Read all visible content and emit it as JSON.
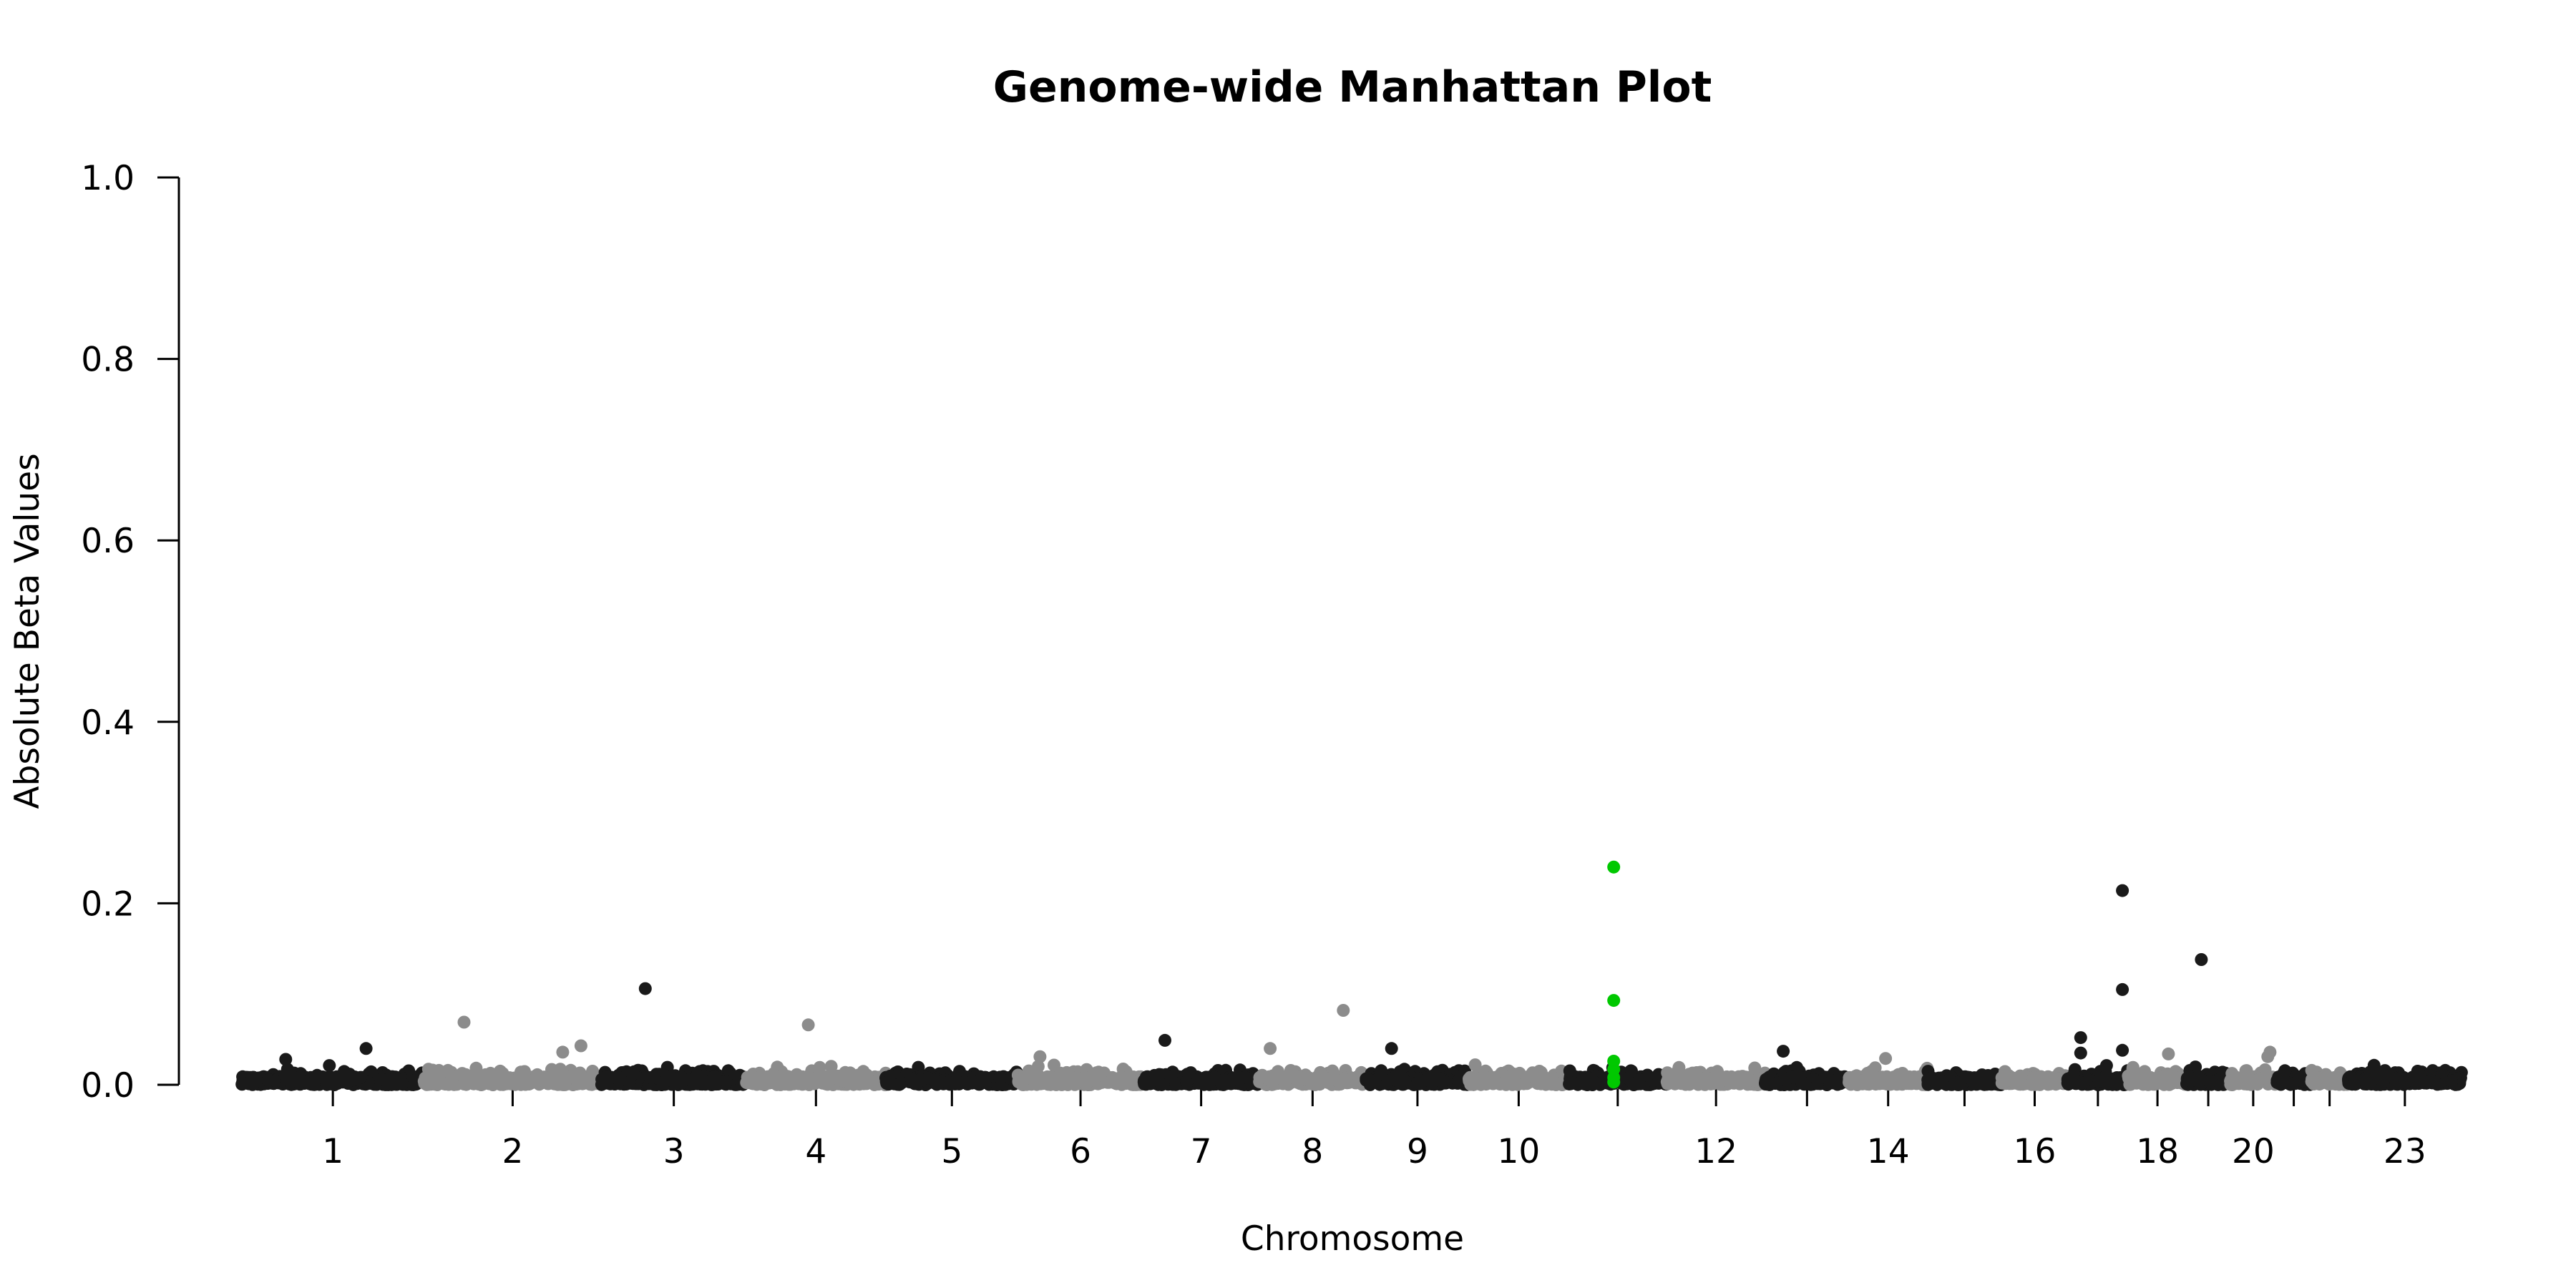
{
  "chart_data": {
    "type": "scatter",
    "title": "Genome-wide Manhattan Plot",
    "xlabel": "Chromosome",
    "ylabel": "Absolute Beta Values",
    "ylim": [
      0,
      1.0
    ],
    "y_ticks": [
      "0.0",
      "0.2",
      "0.4",
      "0.6",
      "0.8",
      "1.0"
    ],
    "x_tick_labels": [
      "1",
      "2",
      "3",
      "4",
      "5",
      "6",
      "7",
      "8",
      "9",
      "10",
      "12",
      "14",
      "16",
      "18",
      "20",
      "23"
    ],
    "grid": false,
    "legend": "none",
    "colors": {
      "odd_chromosome": "#1a1a1a",
      "even_chromosome": "#8c8c8c",
      "highlight": "#00c800"
    },
    "chromosomes": [
      {
        "chr": "1",
        "length": 249
      },
      {
        "chr": "2",
        "length": 243
      },
      {
        "chr": "3",
        "length": 198
      },
      {
        "chr": "4",
        "length": 191
      },
      {
        "chr": "5",
        "length": 181
      },
      {
        "chr": "6",
        "length": 171
      },
      {
        "chr": "7",
        "length": 159
      },
      {
        "chr": "8",
        "length": 146
      },
      {
        "chr": "9",
        "length": 141
      },
      {
        "chr": "10",
        "length": 136
      },
      {
        "chr": "11",
        "length": 135
      },
      {
        "chr": "12",
        "length": 134
      },
      {
        "chr": "13",
        "length": 115
      },
      {
        "chr": "14",
        "length": 107
      },
      {
        "chr": "15",
        "length": 102
      },
      {
        "chr": "16",
        "length": 90
      },
      {
        "chr": "17",
        "length": 83
      },
      {
        "chr": "18",
        "length": 80
      },
      {
        "chr": "19",
        "length": 59
      },
      {
        "chr": "20",
        "length": 64
      },
      {
        "chr": "21",
        "length": 47
      },
      {
        "chr": "22",
        "length": 51
      },
      {
        "chr": "23",
        "length": 155
      }
    ],
    "notable_points": [
      {
        "chr": "1",
        "pos": 60,
        "beta": 0.028
      },
      {
        "chr": "1",
        "pos": 170,
        "beta": 0.04
      },
      {
        "chr": "2",
        "pos": 55,
        "beta": 0.069
      },
      {
        "chr": "2",
        "pos": 190,
        "beta": 0.036
      },
      {
        "chr": "2",
        "pos": 215,
        "beta": 0.043
      },
      {
        "chr": "3",
        "pos": 60,
        "beta": 0.106
      },
      {
        "chr": "4",
        "pos": 85,
        "beta": 0.066
      },
      {
        "chr": "6",
        "pos": 30,
        "beta": 0.031
      },
      {
        "chr": "7",
        "pos": 30,
        "beta": 0.049
      },
      {
        "chr": "8",
        "pos": 15,
        "beta": 0.04
      },
      {
        "chr": "8",
        "pos": 115,
        "beta": 0.082
      },
      {
        "chr": "9",
        "pos": 35,
        "beta": 0.04
      },
      {
        "chr": "11",
        "pos": 62,
        "beta": 0.24,
        "highlight": true
      },
      {
        "chr": "11",
        "pos": 62,
        "beta": 0.093,
        "highlight": true
      },
      {
        "chr": "11",
        "pos": 62,
        "beta": 0.026,
        "highlight": true
      },
      {
        "chr": "11",
        "pos": 62,
        "beta": 0.017,
        "highlight": true
      },
      {
        "chr": "11",
        "pos": 62,
        "beta": 0.008,
        "highlight": true
      },
      {
        "chr": "11",
        "pos": 62,
        "beta": 0.003,
        "highlight": true
      },
      {
        "chr": "13",
        "pos": 25,
        "beta": 0.037
      },
      {
        "chr": "14",
        "pos": 50,
        "beta": 0.029
      },
      {
        "chr": "17",
        "pos": 18,
        "beta": 0.052
      },
      {
        "chr": "17",
        "pos": 18,
        "beta": 0.035
      },
      {
        "chr": "17",
        "pos": 75,
        "beta": 0.214
      },
      {
        "chr": "17",
        "pos": 75,
        "beta": 0.105
      },
      {
        "chr": "17",
        "pos": 75,
        "beta": 0.038
      },
      {
        "chr": "18",
        "pos": 55,
        "beta": 0.034
      },
      {
        "chr": "19",
        "pos": 20,
        "beta": 0.138
      },
      {
        "chr": "20",
        "pos": 55,
        "beta": 0.036
      },
      {
        "chr": "20",
        "pos": 52,
        "beta": 0.031
      },
      {
        "chr": "23",
        "pos": 30,
        "beta": 0.014
      },
      {
        "chr": "23",
        "pos": 95,
        "beta": 0.015
      }
    ]
  }
}
